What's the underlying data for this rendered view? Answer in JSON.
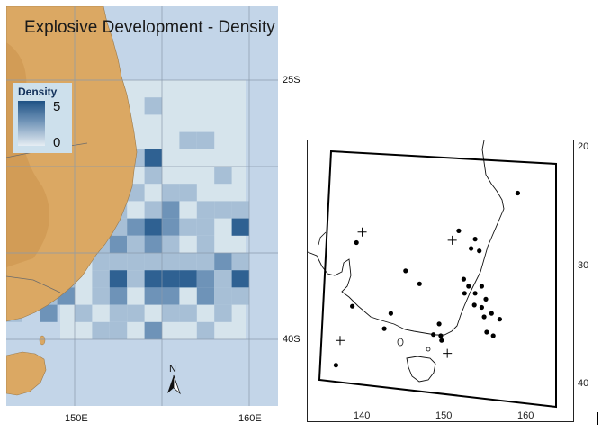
{
  "left_panel": {
    "title": "Explosive Development - Density",
    "legend": {
      "title": "Density",
      "max": "5",
      "min": "0"
    },
    "lat_labels": [
      "25S",
      "40S"
    ],
    "lon_labels": [
      "150E",
      "160E"
    ],
    "north_arrow": "N",
    "colors": {
      "ocean": "#c3d5e8",
      "domain": "#d6e4ec",
      "land": "#dba863",
      "low": "#a7bfd6",
      "mid": "#6e93b8",
      "high": "#2f6192"
    },
    "density_cells": [
      {
        "lon": 154.5,
        "lat": -26.5,
        "v": 2
      },
      {
        "lon": 152.5,
        "lat": -27.5,
        "v": 2
      },
      {
        "lon": 156.5,
        "lat": -28.5,
        "v": 2
      },
      {
        "lon": 157.5,
        "lat": -28.5,
        "v": 2
      },
      {
        "lon": 154.5,
        "lat": -29.5,
        "v": 4
      },
      {
        "lon": 153.5,
        "lat": -29.5,
        "v": 2
      },
      {
        "lon": 154.5,
        "lat": -30.5,
        "v": 2
      },
      {
        "lon": 158.5,
        "lat": -30.5,
        "v": 2
      },
      {
        "lon": 153.5,
        "lat": -31.5,
        "v": 2
      },
      {
        "lon": 155.5,
        "lat": -31.5,
        "v": 2
      },
      {
        "lon": 156.5,
        "lat": -31.5,
        "v": 2
      },
      {
        "lon": 150.5,
        "lat": -32.5,
        "v": 3
      },
      {
        "lon": 151.5,
        "lat": -32.5,
        "v": 3
      },
      {
        "lon": 152.5,
        "lat": -32.5,
        "v": 2
      },
      {
        "lon": 154.5,
        "lat": -32.5,
        "v": 2
      },
      {
        "lon": 155.5,
        "lat": -32.5,
        "v": 3
      },
      {
        "lon": 157.5,
        "lat": -32.5,
        "v": 2
      },
      {
        "lon": 158.5,
        "lat": -32.5,
        "v": 2
      },
      {
        "lon": 159.5,
        "lat": -32.5,
        "v": 2
      },
      {
        "lon": 150.5,
        "lat": -33.5,
        "v": 2
      },
      {
        "lon": 152.5,
        "lat": -33.5,
        "v": 2
      },
      {
        "lon": 153.5,
        "lat": -33.5,
        "v": 3
      },
      {
        "lon": 154.5,
        "lat": -33.5,
        "v": 4
      },
      {
        "lon": 155.5,
        "lat": -33.5,
        "v": 3
      },
      {
        "lon": 156.5,
        "lat": -33.5,
        "v": 2
      },
      {
        "lon": 157.5,
        "lat": -33.5,
        "v": 2
      },
      {
        "lon": 159.5,
        "lat": -33.5,
        "v": 4
      },
      {
        "lon": 149.5,
        "lat": -34.5,
        "v": 2
      },
      {
        "lon": 150.5,
        "lat": -34.5,
        "v": 2
      },
      {
        "lon": 151.5,
        "lat": -34.5,
        "v": 2
      },
      {
        "lon": 152.5,
        "lat": -34.5,
        "v": 3
      },
      {
        "lon": 153.5,
        "lat": -34.5,
        "v": 2
      },
      {
        "lon": 154.5,
        "lat": -34.5,
        "v": 3
      },
      {
        "lon": 155.5,
        "lat": -34.5,
        "v": 2
      },
      {
        "lon": 157.5,
        "lat": -34.5,
        "v": 2
      },
      {
        "lon": 148.5,
        "lat": -35.5,
        "v": 2
      },
      {
        "lon": 149.5,
        "lat": -35.5,
        "v": 3
      },
      {
        "lon": 151.5,
        "lat": -35.5,
        "v": 2
      },
      {
        "lon": 152.5,
        "lat": -35.5,
        "v": 2
      },
      {
        "lon": 153.5,
        "lat": -35.5,
        "v": 2
      },
      {
        "lon": 154.5,
        "lat": -35.5,
        "v": 2
      },
      {
        "lon": 155.5,
        "lat": -35.5,
        "v": 2
      },
      {
        "lon": 156.5,
        "lat": -35.5,
        "v": 2
      },
      {
        "lon": 157.5,
        "lat": -35.5,
        "v": 2
      },
      {
        "lon": 158.5,
        "lat": -35.5,
        "v": 3
      },
      {
        "lon": 159.5,
        "lat": -35.5,
        "v": 2
      },
      {
        "lon": 149.5,
        "lat": -36.5,
        "v": 2
      },
      {
        "lon": 151.5,
        "lat": -36.5,
        "v": 2
      },
      {
        "lon": 152.5,
        "lat": -36.5,
        "v": 4
      },
      {
        "lon": 153.5,
        "lat": -36.5,
        "v": 2
      },
      {
        "lon": 154.5,
        "lat": -36.5,
        "v": 4
      },
      {
        "lon": 155.5,
        "lat": -36.5,
        "v": 5
      },
      {
        "lon": 156.5,
        "lat": -36.5,
        "v": 4
      },
      {
        "lon": 157.5,
        "lat": -36.5,
        "v": 3
      },
      {
        "lon": 158.5,
        "lat": -36.5,
        "v": 2
      },
      {
        "lon": 159.5,
        "lat": -36.5,
        "v": 4
      },
      {
        "lon": 148.5,
        "lat": -37.5,
        "v": 2
      },
      {
        "lon": 149.5,
        "lat": -37.5,
        "v": 3
      },
      {
        "lon": 151.5,
        "lat": -37.5,
        "v": 2
      },
      {
        "lon": 152.5,
        "lat": -37.5,
        "v": 3
      },
      {
        "lon": 154.5,
        "lat": -37.5,
        "v": 3
      },
      {
        "lon": 155.5,
        "lat": -37.5,
        "v": 3
      },
      {
        "lon": 157.5,
        "lat": -37.5,
        "v": 3
      },
      {
        "lon": 158.5,
        "lat": -37.5,
        "v": 2
      },
      {
        "lon": 159.5,
        "lat": -37.5,
        "v": 2
      },
      {
        "lon": 146.5,
        "lat": -38.5,
        "v": 2
      },
      {
        "lon": 148.5,
        "lat": -38.5,
        "v": 3
      },
      {
        "lon": 150.5,
        "lat": -38.5,
        "v": 2
      },
      {
        "lon": 152.5,
        "lat": -38.5,
        "v": 2
      },
      {
        "lon": 153.5,
        "lat": -38.5,
        "v": 2
      },
      {
        "lon": 155.5,
        "lat": -38.5,
        "v": 2
      },
      {
        "lon": 156.5,
        "lat": -38.5,
        "v": 2
      },
      {
        "lon": 158.5,
        "lat": -38.5,
        "v": 2
      },
      {
        "lon": 151.5,
        "lat": -39.5,
        "v": 2
      },
      {
        "lon": 152.5,
        "lat": -39.5,
        "v": 2
      },
      {
        "lon": 154.5,
        "lat": -39.5,
        "v": 3
      },
      {
        "lon": 157.5,
        "lat": -39.5,
        "v": 2
      }
    ]
  },
  "right_panel": {
    "lat_labels": [
      "20",
      "30",
      "40"
    ],
    "lon_labels": [
      "140",
      "150",
      "160"
    ],
    "points": [
      {
        "lon": 159.5,
        "lat": -23.7
      },
      {
        "lon": 152.3,
        "lat": -26.9
      },
      {
        "lon": 154.3,
        "lat": -27.6
      },
      {
        "lon": 154.8,
        "lat": -28.6
      },
      {
        "lon": 153.8,
        "lat": -28.4
      },
      {
        "lon": 139.8,
        "lat": -27.9
      },
      {
        "lon": 145.8,
        "lat": -30.3
      },
      {
        "lon": 147.5,
        "lat": -31.4
      },
      {
        "lon": 152.9,
        "lat": -31.0
      },
      {
        "lon": 153.5,
        "lat": -31.6
      },
      {
        "lon": 155.1,
        "lat": -31.6
      },
      {
        "lon": 153.0,
        "lat": -32.2
      },
      {
        "lon": 154.3,
        "lat": -32.2
      },
      {
        "lon": 154.2,
        "lat": -33.2
      },
      {
        "lon": 155.6,
        "lat": -32.7
      },
      {
        "lon": 155.1,
        "lat": -33.4
      },
      {
        "lon": 156.3,
        "lat": -33.9
      },
      {
        "lon": 157.3,
        "lat": -34.4
      },
      {
        "lon": 155.4,
        "lat": -34.2
      },
      {
        "lon": 139.3,
        "lat": -33.3
      },
      {
        "lon": 144.0,
        "lat": -33.9
      },
      {
        "lon": 149.9,
        "lat": -34.8
      },
      {
        "lon": 149.2,
        "lat": -35.7
      },
      {
        "lon": 150.1,
        "lat": -35.8
      },
      {
        "lon": 150.2,
        "lat": -36.2
      },
      {
        "lon": 143.2,
        "lat": -35.2
      },
      {
        "lon": 155.7,
        "lat": -35.5
      },
      {
        "lon": 156.5,
        "lat": -35.8
      },
      {
        "lon": 137.3,
        "lat": -38.3
      }
    ],
    "crosses": [
      {
        "lon": 140.5,
        "lat": -27.0
      },
      {
        "lon": 151.5,
        "lat": -27.7
      },
      {
        "lon": 137.8,
        "lat": -36.2
      },
      {
        "lon": 150.9,
        "lat": -37.3
      }
    ]
  }
}
